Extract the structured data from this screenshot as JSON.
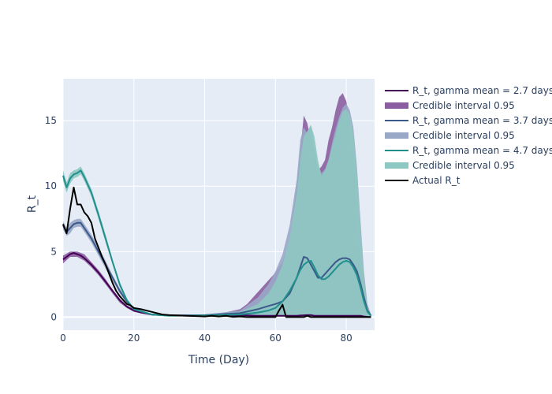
{
  "chart_data": {
    "type": "line",
    "xlabel": "Time (Day)",
    "ylabel": "R_t",
    "xlim": [
      0,
      88
    ],
    "ylim": [
      -1,
      18.2
    ],
    "grid": true,
    "legend_position": "right",
    "x_ticks": [
      0,
      20,
      40,
      60,
      80
    ],
    "y_ticks": [
      0,
      5,
      10,
      15
    ],
    "series": [
      {
        "name": "R_t, gamma mean = 2.7 days",
        "color": "#440154",
        "x": [
          0,
          2,
          3,
          5,
          6,
          8,
          10,
          12,
          14,
          16,
          18,
          20,
          22,
          25,
          30,
          40,
          45,
          50,
          55,
          57,
          59,
          60,
          62,
          64,
          65,
          66,
          67,
          68,
          69,
          70,
          71,
          72,
          73,
          74,
          75,
          76,
          77,
          78,
          79,
          80,
          81,
          82,
          83,
          84,
          85,
          86,
          87
        ],
        "y": [
          4.4,
          4.8,
          4.9,
          4.7,
          4.5,
          4.0,
          3.4,
          2.7,
          2.0,
          1.3,
          0.8,
          0.5,
          0.35,
          0.2,
          0.12,
          0.12,
          0.12,
          0.15,
          0.1,
          0.1,
          0.1,
          0.1,
          0.1,
          0.1,
          0.1,
          0.1,
          0.12,
          0.14,
          0.15,
          0.15,
          0.1,
          0.1,
          0.1,
          0.1,
          0.1,
          0.1,
          0.1,
          0.1,
          0.1,
          0.1,
          0.1,
          0.1,
          0.1,
          0.1,
          0.05,
          0.02,
          0
        ]
      },
      {
        "name": "Credible interval 0.95",
        "color": "#8a5ea0",
        "band": true,
        "x": [
          0,
          2,
          4,
          6,
          8,
          10,
          12,
          14,
          16,
          18,
          20,
          25,
          30,
          35,
          40,
          45,
          50,
          52,
          54,
          56,
          58,
          60,
          62,
          63,
          64,
          65,
          66,
          67,
          68,
          69,
          70,
          71,
          72,
          73,
          74,
          75,
          76,
          77,
          78,
          79,
          80,
          81,
          82,
          83,
          84,
          85,
          86,
          87
        ],
        "upper": [
          4.7,
          5.0,
          5.0,
          4.8,
          4.2,
          3.6,
          2.9,
          2.1,
          1.4,
          0.9,
          0.6,
          0.25,
          0.15,
          0.15,
          0.2,
          0.3,
          0.6,
          1.0,
          1.6,
          2.2,
          2.8,
          3.4,
          4.2,
          5.0,
          6.0,
          8.0,
          10.0,
          12.5,
          15.4,
          14.8,
          13.5,
          12.5,
          11.2,
          11.5,
          12.0,
          13.5,
          14.5,
          15.8,
          16.8,
          17.1,
          16.5,
          15.0,
          12.0,
          8.0,
          4.0,
          1.5,
          0.3,
          0.1
        ],
        "lower": [
          4.1,
          4.6,
          4.6,
          4.3,
          3.8,
          3.2,
          2.5,
          1.8,
          1.1,
          0.7,
          0.4,
          0.15,
          0.08,
          0.05,
          0.05,
          0.05,
          0.05,
          0.05,
          0.05,
          0.05,
          0.05,
          0.05,
          0.05,
          0.05,
          0.05,
          0.05,
          0.05,
          0.05,
          0.05,
          0.05,
          0.05,
          0.05,
          0.05,
          0.05,
          0.05,
          0.05,
          0.05,
          0.05,
          0.05,
          0.05,
          0.05,
          0.05,
          0.05,
          0.05,
          0.05,
          0.05,
          0.02,
          0
        ]
      },
      {
        "name": "R_t, gamma mean = 3.7 days",
        "color": "#3b5a8a",
        "x": [
          0,
          1,
          2,
          3,
          4,
          5,
          6,
          8,
          10,
          12,
          14,
          16,
          18,
          20,
          25,
          30,
          40,
          50,
          55,
          58,
          60,
          62,
          64,
          66,
          67,
          68,
          69,
          70,
          71,
          72,
          73,
          74,
          75,
          76,
          77,
          78,
          79,
          80,
          81,
          82,
          83,
          84,
          85,
          86,
          87
        ],
        "y": [
          7.0,
          6.5,
          6.8,
          7.1,
          7.2,
          7.2,
          6.8,
          6.0,
          5.0,
          4.0,
          3.0,
          2.0,
          1.2,
          0.6,
          0.2,
          0.12,
          0.15,
          0.3,
          0.6,
          0.85,
          1.0,
          1.2,
          1.8,
          3.0,
          3.8,
          4.6,
          4.5,
          4.0,
          3.5,
          3.0,
          3.0,
          3.3,
          3.6,
          3.9,
          4.2,
          4.4,
          4.5,
          4.5,
          4.4,
          4.0,
          3.5,
          2.6,
          1.5,
          0.5,
          0.1
        ]
      },
      {
        "name": "Credible interval 0.95",
        "color": "#9aa8c8",
        "band": true,
        "x": [
          0,
          1,
          2,
          3,
          4,
          5,
          6,
          8,
          10,
          12,
          14,
          16,
          18,
          20,
          25,
          30,
          40,
          50,
          55,
          58,
          60,
          62,
          64,
          66,
          67,
          68,
          69,
          70,
          71,
          72,
          73,
          74,
          75,
          76,
          77,
          78,
          79,
          80,
          81,
          82,
          83,
          84,
          85,
          86,
          87
        ],
        "upper": [
          7.3,
          6.8,
          7.2,
          7.4,
          7.5,
          7.5,
          7.1,
          6.3,
          5.3,
          4.3,
          3.2,
          2.2,
          1.3,
          0.7,
          0.25,
          0.15,
          0.2,
          0.5,
          1.5,
          2.5,
          3.5,
          4.8,
          7.0,
          10.5,
          13.5,
          14.5,
          14.0,
          14.6,
          13.0,
          11.5,
          11.0,
          11.3,
          12.0,
          13.3,
          14.4,
          15.3,
          16.0,
          16.3,
          15.8,
          14.5,
          11.5,
          7.5,
          3.5,
          1.0,
          0.2
        ],
        "lower": [
          6.7,
          6.2,
          6.4,
          6.8,
          6.9,
          6.9,
          6.5,
          5.7,
          4.7,
          3.7,
          2.8,
          1.8,
          1.1,
          0.5,
          0.15,
          0.08,
          0.05,
          0.05,
          0.05,
          0.05,
          0.05,
          0.05,
          0.05,
          0.05,
          0.05,
          0.05,
          0.05,
          0.05,
          0.05,
          0.05,
          0.05,
          0.05,
          0.05,
          0.05,
          0.05,
          0.05,
          0.05,
          0.05,
          0.05,
          0.05,
          0.05,
          0.05,
          0.05,
          0.05,
          0
        ]
      },
      {
        "name": "R_t, gamma mean = 4.7 days",
        "color": "#21908c",
        "x": [
          0,
          1,
          2,
          3,
          4,
          5,
          6,
          8,
          10,
          12,
          14,
          16,
          18,
          20,
          25,
          30,
          40,
          50,
          55,
          58,
          60,
          62,
          64,
          66,
          67,
          68,
          69,
          70,
          71,
          72,
          73,
          74,
          75,
          76,
          77,
          78,
          79,
          80,
          81,
          82,
          83,
          84,
          85,
          86,
          87
        ],
        "y": [
          10.8,
          9.9,
          10.6,
          10.9,
          11.0,
          11.2,
          10.7,
          9.5,
          7.8,
          6.0,
          4.2,
          2.5,
          1.3,
          0.6,
          0.2,
          0.1,
          0.12,
          0.2,
          0.35,
          0.5,
          0.7,
          1.2,
          2.0,
          3.0,
          3.6,
          4.0,
          4.2,
          4.3,
          3.8,
          3.2,
          2.9,
          2.9,
          3.1,
          3.4,
          3.7,
          4.0,
          4.2,
          4.3,
          4.2,
          3.8,
          3.2,
          2.3,
          1.2,
          0.4,
          0.1
        ]
      },
      {
        "name": "Credible interval 0.95",
        "color": "#8ec8c2",
        "band": true,
        "x": [
          0,
          1,
          2,
          3,
          4,
          5,
          6,
          8,
          10,
          12,
          14,
          16,
          18,
          20,
          25,
          30,
          40,
          50,
          55,
          58,
          60,
          62,
          64,
          66,
          67,
          68,
          69,
          70,
          71,
          72,
          73,
          74,
          75,
          76,
          77,
          78,
          79,
          80,
          81,
          82,
          83,
          84,
          85,
          86,
          87
        ],
        "upper": [
          11.2,
          10.3,
          11.0,
          11.2,
          11.3,
          11.5,
          11.0,
          9.8,
          8.1,
          6.3,
          4.4,
          2.7,
          1.4,
          0.7,
          0.25,
          0.12,
          0.15,
          0.4,
          1.0,
          1.8,
          2.7,
          4.0,
          6.0,
          9.5,
          12.0,
          13.8,
          14.2,
          14.7,
          13.8,
          12.0,
          10.8,
          11.2,
          12.0,
          13.0,
          14.0,
          15.0,
          15.7,
          15.9,
          15.4,
          14.0,
          11.0,
          7.0,
          3.0,
          0.8,
          0.15
        ],
        "lower": [
          10.4,
          9.5,
          10.2,
          10.6,
          10.7,
          10.9,
          10.4,
          9.2,
          7.5,
          5.7,
          4.0,
          2.3,
          1.2,
          0.5,
          0.15,
          0.07,
          0.05,
          0.05,
          0.05,
          0.05,
          0.05,
          0.05,
          0.05,
          0.05,
          0.05,
          0.05,
          0.05,
          0.05,
          0.05,
          0.05,
          0.05,
          0.05,
          0.05,
          0.05,
          0.05,
          0.05,
          0.05,
          0.05,
          0.05,
          0.05,
          0.05,
          0.05,
          0.05,
          0.05,
          0
        ]
      },
      {
        "name": "Actual R_t",
        "color": "#000000",
        "x": [
          0,
          1,
          2,
          3,
          4,
          5,
          6,
          7,
          8,
          9,
          10,
          11,
          12,
          13,
          14,
          15,
          16,
          17,
          18,
          19,
          20,
          22,
          25,
          28,
          30,
          35,
          40,
          42,
          44,
          46,
          48,
          50,
          52,
          55,
          58,
          60,
          61,
          62,
          63,
          64,
          65,
          66,
          67,
          68,
          69,
          70,
          72,
          75,
          80,
          85,
          87
        ],
        "y": [
          7.1,
          6.4,
          8.3,
          9.9,
          8.6,
          8.6,
          8.0,
          7.7,
          7.2,
          6.0,
          5.3,
          4.6,
          4.0,
          3.3,
          2.6,
          2.0,
          1.6,
          1.3,
          1.0,
          0.9,
          0.7,
          0.6,
          0.4,
          0.2,
          0.15,
          0.1,
          0.05,
          0.1,
          0.05,
          0.1,
          0.02,
          0.05,
          0,
          0,
          0,
          0,
          0.5,
          0.95,
          0,
          0,
          0,
          0,
          0,
          0,
          0.1,
          0,
          0,
          0,
          0,
          0,
          0
        ]
      }
    ]
  }
}
